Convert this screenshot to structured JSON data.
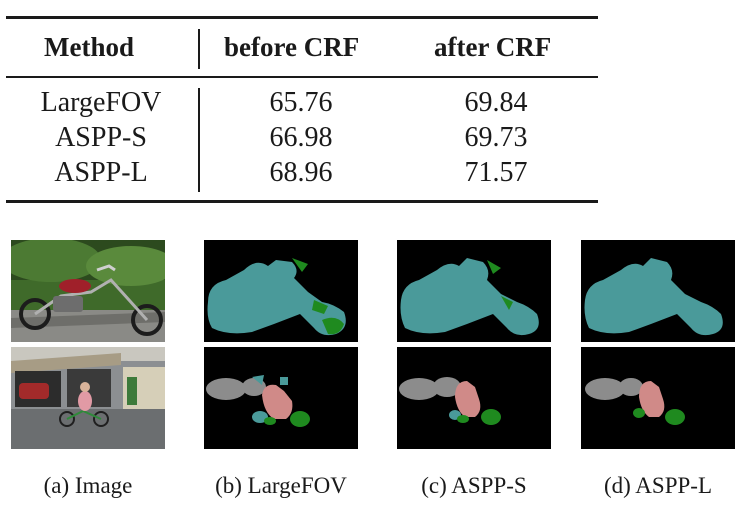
{
  "table": {
    "headers": [
      "Method",
      "before CRF",
      "after CRF"
    ],
    "rows": [
      [
        "LargeFOV",
        "65.76",
        "69.84"
      ],
      [
        "ASPP-S",
        "66.98",
        "69.73"
      ],
      [
        "ASPP-L",
        "68.96",
        "71.57"
      ]
    ]
  },
  "figure": {
    "captions": [
      "(a) Image",
      "(b) LargeFOV",
      "(c) ASPP-S",
      "(d) ASPP-L"
    ],
    "palette": {
      "background": "#000000",
      "motorbike": "#4a9a9a",
      "person": "#d08a88",
      "bicycle": "#1f8a1f",
      "uncertain": "#8c8c8c"
    }
  }
}
